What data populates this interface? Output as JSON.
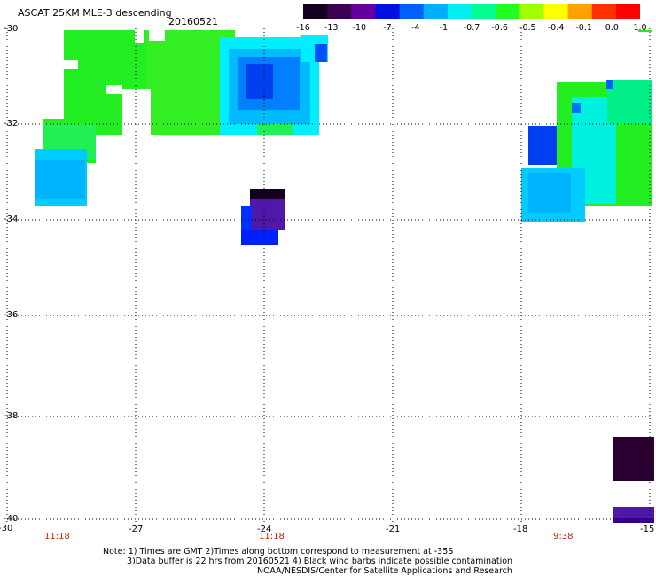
{
  "header": {
    "title": "ASCAT 25KM MLE-3 descending",
    "date": "20160521"
  },
  "colorbar": {
    "labels": [
      "-16",
      "-13",
      "-10",
      "-7",
      "-4",
      "-1",
      "-0.7",
      "-0.6",
      "-0.5",
      "-0.4",
      "-0.1",
      "0.0",
      "1.0"
    ],
    "colors": [
      "#14001e",
      "#3c0050",
      "#6400a0",
      "#0010e0",
      "#0060ff",
      "#00b0ff",
      "#00f0f0",
      "#00ff90",
      "#20ff20",
      "#a0ff00",
      "#ffff00",
      "#ffa000",
      "#ff3000",
      "#ff0000"
    ]
  },
  "axes": {
    "x_ticks": [
      "-30",
      "-27",
      "-24",
      "-21",
      "-18",
      "-15"
    ],
    "y_ticks": [
      "-30",
      "-32",
      "-34",
      "-36",
      "-38",
      "-40"
    ]
  },
  "times": [
    "11:18",
    "11:18",
    "9:38"
  ],
  "notes": {
    "line1": "Note: 1) Times are GMT 2)Times along bottom correspond to measurement at -35S",
    "line2": "3)Data buffer is 22 hrs from 20160521 4) Black wind barbs indicate possible contamination",
    "line3": "NOAA/NESDIS/Center for Satellite Applications and Research"
  }
}
